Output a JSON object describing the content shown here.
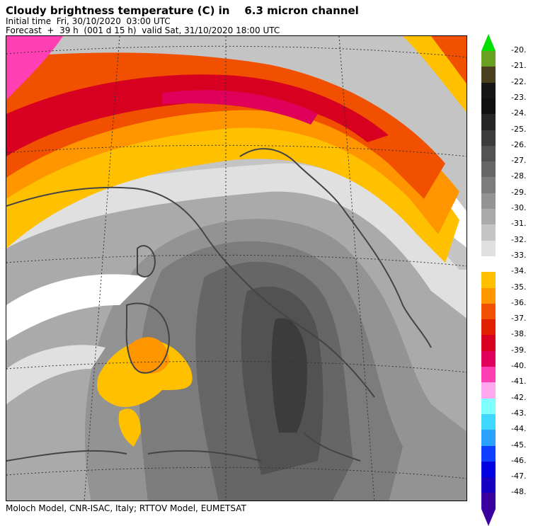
{
  "header": {
    "title": "Cloudy brightness temperature (C) in    6.3 micron channel",
    "initial_time": "Initial time  Fri, 30/10/2020  03:00 UTC",
    "forecast": "Forecast  +  39 h  (001 d 15 h)  valid Sat, 31/10/2020 18:00 UTC"
  },
  "footer": {
    "credit": "Moloch Model, CNR-ISAC, Italy; RTTOV Model, EUMETSAT"
  },
  "legend": {
    "top_arrow_color": "#00e000",
    "bottom_arrow_color": "#3a00a0",
    "items": [
      {
        "label": "-20.",
        "color": "#6aa020"
      },
      {
        "label": "-21.",
        "color": "#4a4020"
      },
      {
        "label": "-22.",
        "color": "#161616"
      },
      {
        "label": "-23.",
        "color": "#101010"
      },
      {
        "label": "-24.",
        "color": "#262626"
      },
      {
        "label": "-25.",
        "color": "#3c3c3c"
      },
      {
        "label": "-26.",
        "color": "#525252"
      },
      {
        "label": "-27.",
        "color": "#666666"
      },
      {
        "label": "-28.",
        "color": "#7c7c7c"
      },
      {
        "label": "-29.",
        "color": "#939393"
      },
      {
        "label": "-30.",
        "color": "#aaaaaa"
      },
      {
        "label": "-31.",
        "color": "#c4c4c4"
      },
      {
        "label": "-32.",
        "color": "#e0e0e0"
      },
      {
        "label": "-33.",
        "color": "#ffffff"
      },
      {
        "label": "-34.",
        "color": "#ffc000"
      },
      {
        "label": "-35.",
        "color": "#ff9600"
      },
      {
        "label": "-36.",
        "color": "#f05000"
      },
      {
        "label": "-37.",
        "color": "#e02000"
      },
      {
        "label": "-38.",
        "color": "#d80020"
      },
      {
        "label": "-39.",
        "color": "#e0005a"
      },
      {
        "label": "-40.",
        "color": "#ff40b4"
      },
      {
        "label": "-41.",
        "color": "#ffa8f0"
      },
      {
        "label": "-42.",
        "color": "#80ffff"
      },
      {
        "label": "-43.",
        "color": "#40d8ff"
      },
      {
        "label": "-44.",
        "color": "#2aa0ff"
      },
      {
        "label": "-45.",
        "color": "#1040ff"
      },
      {
        "label": "-46.",
        "color": "#0000e0"
      },
      {
        "label": "-47.",
        "color": "#1800c0"
      },
      {
        "label": "-48.",
        "color": "#3a00a0"
      }
    ]
  }
}
